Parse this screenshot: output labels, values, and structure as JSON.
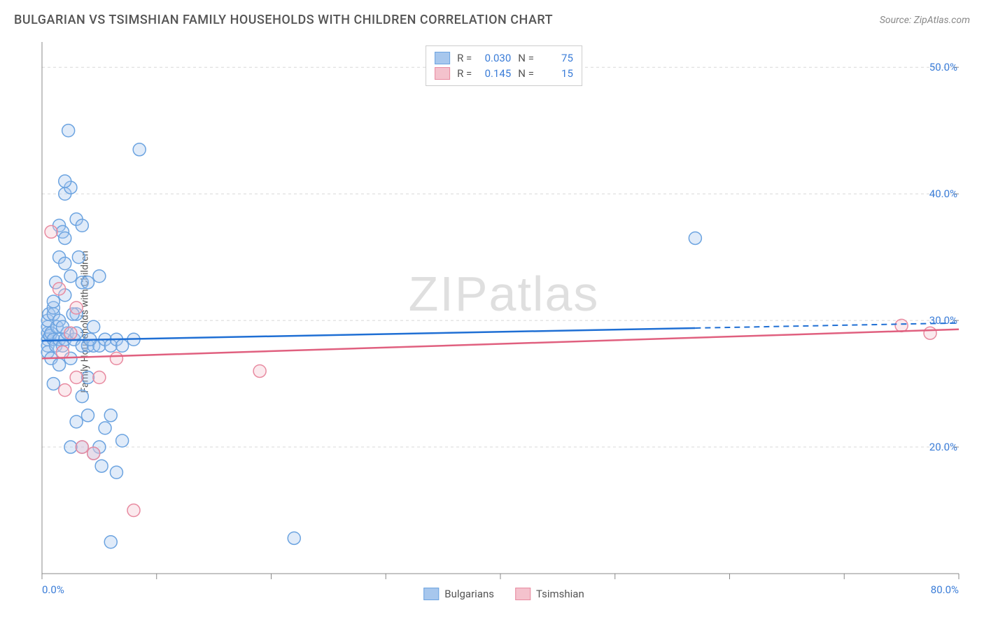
{
  "title": "BULGARIAN VS TSIMSHIAN FAMILY HOUSEHOLDS WITH CHILDREN CORRELATION CHART",
  "source": "Source: ZipAtlas.com",
  "watermark": "ZIPatlas",
  "y_axis_label": "Family Households with Children",
  "chart": {
    "type": "scatter",
    "background_color": "#ffffff",
    "grid_color": "#d8d8d8",
    "axis_line_color": "#888888",
    "tick_color": "#888888",
    "tick_label_color": "#3b7dd8",
    "text_color": "#555555",
    "xlim": [
      0,
      80
    ],
    "ylim": [
      10,
      52
    ],
    "x_ticks": [
      0,
      10,
      20,
      30,
      40,
      50,
      60,
      70,
      80
    ],
    "x_tick_labels": {
      "0": "0.0%",
      "80": "80.0%"
    },
    "y_ticks": [
      20,
      30,
      40,
      50
    ],
    "y_tick_labels": {
      "20": "20.0%",
      "30": "30.0%",
      "40": "40.0%",
      "50": "50.0%"
    },
    "y_grid_lines": [
      20,
      30,
      40,
      50
    ],
    "marker_radius": 9,
    "marker_stroke_width": 1.5,
    "marker_fill_opacity": 0.35,
    "trend_line_width": 2.5,
    "series": [
      {
        "name": "Bulgarians",
        "color_fill": "#a7c7ed",
        "color_stroke": "#6ba3e0",
        "trend_color": "#1f6fd4",
        "R": "0.030",
        "N": "75",
        "trend": {
          "x1": 0,
          "y1": 28.4,
          "x2_solid": 57,
          "y2_solid": 29.4,
          "x2": 80,
          "y2": 29.8
        },
        "points": [
          [
            0.5,
            28.5
          ],
          [
            0.5,
            29.0
          ],
          [
            0.5,
            29.5
          ],
          [
            0.5,
            30.0
          ],
          [
            0.5,
            28.0
          ],
          [
            0.5,
            27.5
          ],
          [
            0.6,
            30.5
          ],
          [
            0.7,
            28.8
          ],
          [
            0.8,
            29.0
          ],
          [
            0.8,
            27.0
          ],
          [
            1.0,
            28.5
          ],
          [
            1.0,
            30.5
          ],
          [
            1.0,
            31.0
          ],
          [
            1.0,
            25.0
          ],
          [
            1.2,
            28.0
          ],
          [
            1.2,
            33.0
          ],
          [
            1.3,
            29.5
          ],
          [
            1.5,
            28.5
          ],
          [
            1.5,
            30.0
          ],
          [
            1.5,
            35.0
          ],
          [
            1.5,
            37.5
          ],
          [
            1.8,
            28.0
          ],
          [
            1.8,
            37.0
          ],
          [
            2.0,
            28.5
          ],
          [
            2.0,
            32.0
          ],
          [
            2.0,
            34.5
          ],
          [
            2.0,
            36.5
          ],
          [
            2.0,
            40.0
          ],
          [
            2.2,
            29.0
          ],
          [
            2.3,
            45.0
          ],
          [
            2.5,
            27.0
          ],
          [
            2.5,
            33.5
          ],
          [
            2.5,
            40.5
          ],
          [
            2.8,
            28.5
          ],
          [
            3.0,
            22.0
          ],
          [
            3.0,
            29.0
          ],
          [
            3.0,
            30.5
          ],
          [
            3.0,
            38.0
          ],
          [
            3.5,
            24.0
          ],
          [
            3.5,
            28.0
          ],
          [
            3.5,
            33.0
          ],
          [
            3.5,
            37.5
          ],
          [
            4.0,
            22.5
          ],
          [
            4.0,
            25.5
          ],
          [
            4.0,
            28.0
          ],
          [
            4.0,
            33.0
          ],
          [
            4.5,
            28.0
          ],
          [
            4.5,
            29.5
          ],
          [
            5.0,
            20.0
          ],
          [
            5.0,
            28.0
          ],
          [
            5.0,
            33.5
          ],
          [
            5.2,
            18.5
          ],
          [
            5.5,
            21.5
          ],
          [
            5.5,
            28.5
          ],
          [
            6.0,
            12.5
          ],
          [
            6.0,
            22.5
          ],
          [
            6.0,
            28.0
          ],
          [
            6.5,
            18.0
          ],
          [
            6.5,
            28.5
          ],
          [
            7.0,
            20.5
          ],
          [
            7.0,
            28.0
          ],
          [
            8.0,
            28.5
          ],
          [
            8.5,
            43.5
          ],
          [
            4.5,
            19.5
          ],
          [
            3.5,
            20.0
          ],
          [
            2.5,
            20.0
          ],
          [
            2.0,
            41.0
          ],
          [
            1.8,
            29.5
          ],
          [
            1.5,
            26.5
          ],
          [
            1.0,
            31.5
          ],
          [
            22.0,
            12.8
          ],
          [
            3.2,
            35.0
          ],
          [
            2.7,
            30.5
          ],
          [
            57.0,
            36.5
          ],
          [
            4.2,
            28.5
          ]
        ]
      },
      {
        "name": "Tsimshian",
        "color_fill": "#f4c2cd",
        "color_stroke": "#e88aa0",
        "trend_color": "#e0607f",
        "R": "0.145",
        "N": "15",
        "trend": {
          "x1": 0,
          "y1": 27.0,
          "x2_solid": 80,
          "y2_solid": 29.3,
          "x2": 80,
          "y2": 29.3
        },
        "points": [
          [
            0.8,
            37.0
          ],
          [
            1.5,
            32.5
          ],
          [
            1.8,
            27.5
          ],
          [
            2.0,
            24.5
          ],
          [
            2.5,
            29.0
          ],
          [
            3.0,
            25.5
          ],
          [
            3.0,
            31.0
          ],
          [
            3.5,
            20.0
          ],
          [
            4.5,
            19.5
          ],
          [
            5.0,
            25.5
          ],
          [
            6.5,
            27.0
          ],
          [
            8.0,
            15.0
          ],
          [
            19.0,
            26.0
          ],
          [
            75.0,
            29.6
          ],
          [
            77.5,
            29.0
          ]
        ]
      }
    ]
  },
  "legend_bottom": [
    {
      "label": "Bulgarians",
      "fill": "#a7c7ed",
      "stroke": "#6ba3e0"
    },
    {
      "label": "Tsimshian",
      "fill": "#f4c2cd",
      "stroke": "#e88aa0"
    }
  ]
}
